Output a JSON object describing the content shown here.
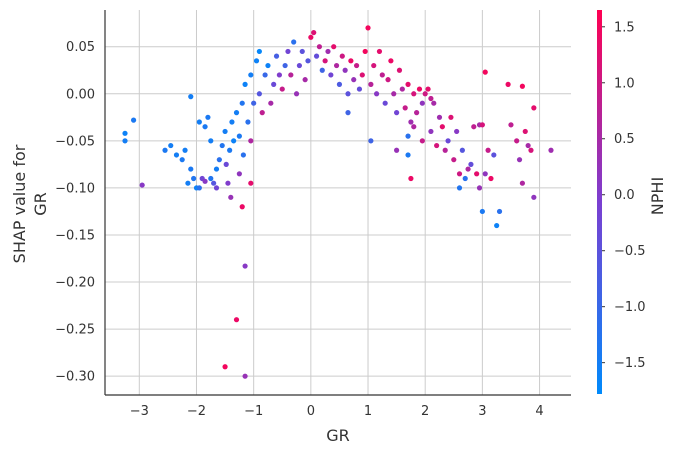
{
  "chart_data": {
    "type": "scatter",
    "title": "",
    "xlabel": "GR",
    "ylabel_lines": [
      "SHAP value for",
      "GR"
    ],
    "xlim": [
      -3.6,
      4.55
    ],
    "ylim": [
      -0.32,
      0.089
    ],
    "x_ticks": [
      -3,
      -2,
      -1,
      0,
      1,
      2,
      3,
      4
    ],
    "x_tick_labels": [
      "−3",
      "−2",
      "−1",
      "0",
      "1",
      "2",
      "3",
      "4"
    ],
    "y_ticks": [
      0.05,
      0.0,
      -0.05,
      -0.1,
      -0.15,
      -0.2,
      -0.25,
      -0.3
    ],
    "y_tick_labels": [
      "0.05",
      "0.00",
      "−0.05",
      "−0.10",
      "−0.15",
      "−0.20",
      "−0.25",
      "−0.30"
    ],
    "grid": true,
    "colorbar": {
      "label": "NPHI",
      "range": [
        -1.78,
        1.65
      ],
      "ticks": [
        1.5,
        1.0,
        0.5,
        0.0,
        -0.5,
        -1.0,
        -1.5
      ],
      "tick_labels": [
        "1.5",
        "1.0",
        "0.5",
        "0.0",
        "−0.5",
        "−1.0",
        "−1.5"
      ],
      "color_low": "#008afb",
      "color_mid": "#7b3fd1",
      "color_high": "#ff0052"
    },
    "points": [
      {
        "x": -3.25,
        "y": -0.042,
        "c": -1.6
      },
      {
        "x": -3.25,
        "y": -0.05,
        "c": -1.5
      },
      {
        "x": -3.1,
        "y": -0.028,
        "c": -1.4
      },
      {
        "x": -2.95,
        "y": -0.097,
        "c": 0.1
      },
      {
        "x": -2.55,
        "y": -0.06,
        "c": -1.4
      },
      {
        "x": -2.45,
        "y": -0.055,
        "c": -1.5
      },
      {
        "x": -2.35,
        "y": -0.065,
        "c": -1.5
      },
      {
        "x": -2.25,
        "y": -0.07,
        "c": -1.4
      },
      {
        "x": -2.2,
        "y": -0.06,
        "c": -1.5
      },
      {
        "x": -2.15,
        "y": -0.095,
        "c": -1.5
      },
      {
        "x": -2.1,
        "y": -0.08,
        "c": -1.4
      },
      {
        "x": -2.05,
        "y": -0.09,
        "c": -1.3
      },
      {
        "x": -2.0,
        "y": -0.1,
        "c": -1.6
      },
      {
        "x": -1.95,
        "y": -0.1,
        "c": -1.2
      },
      {
        "x": -2.1,
        "y": -0.003,
        "c": -1.5
      },
      {
        "x": -1.95,
        "y": -0.03,
        "c": -1.5
      },
      {
        "x": -1.85,
        "y": -0.035,
        "c": -1.4
      },
      {
        "x": -1.8,
        "y": -0.025,
        "c": -1.4
      },
      {
        "x": -1.75,
        "y": -0.05,
        "c": -1.5
      },
      {
        "x": -1.9,
        "y": -0.09,
        "c": -0.2
      },
      {
        "x": -1.85,
        "y": -0.093,
        "c": 0.1
      },
      {
        "x": -1.75,
        "y": -0.09,
        "c": -1.3
      },
      {
        "x": -1.7,
        "y": -0.095,
        "c": -0.6
      },
      {
        "x": -1.65,
        "y": -0.08,
        "c": -1.5
      },
      {
        "x": -1.65,
        "y": -0.1,
        "c": -0.2
      },
      {
        "x": -1.6,
        "y": -0.07,
        "c": -1.2
      },
      {
        "x": -1.55,
        "y": -0.055,
        "c": -1.3
      },
      {
        "x": -1.5,
        "y": -0.04,
        "c": -1.5
      },
      {
        "x": -1.48,
        "y": -0.075,
        "c": -0.3
      },
      {
        "x": -1.45,
        "y": -0.095,
        "c": 0.0
      },
      {
        "x": -1.4,
        "y": -0.11,
        "c": 0.3
      },
      {
        "x": -1.42,
        "y": -0.06,
        "c": -1.4
      },
      {
        "x": -1.38,
        "y": -0.03,
        "c": -1.5
      },
      {
        "x": -1.35,
        "y": -0.05,
        "c": -1.6
      },
      {
        "x": -1.3,
        "y": -0.02,
        "c": -1.5
      },
      {
        "x": -1.25,
        "y": -0.045,
        "c": -1.4
      },
      {
        "x": -1.25,
        "y": -0.085,
        "c": 0.2
      },
      {
        "x": -1.2,
        "y": -0.01,
        "c": -1.3
      },
      {
        "x": -1.18,
        "y": -0.065,
        "c": -1.2
      },
      {
        "x": -1.15,
        "y": 0.01,
        "c": -1.6
      },
      {
        "x": -1.1,
        "y": -0.03,
        "c": -1.2
      },
      {
        "x": -1.05,
        "y": 0.02,
        "c": -1.5
      },
      {
        "x": -1.05,
        "y": -0.05,
        "c": 0.6
      },
      {
        "x": -1.0,
        "y": -0.01,
        "c": -0.9
      },
      {
        "x": -0.95,
        "y": 0.035,
        "c": -1.6
      },
      {
        "x": -0.9,
        "y": 0.045,
        "c": -1.7
      },
      {
        "x": -0.9,
        "y": 0.0,
        "c": -0.6
      },
      {
        "x": -0.85,
        "y": -0.02,
        "c": 0.8
      },
      {
        "x": -0.8,
        "y": 0.02,
        "c": -1.0
      },
      {
        "x": -0.75,
        "y": 0.03,
        "c": -1.6
      },
      {
        "x": -0.7,
        "y": -0.01,
        "c": 0.5
      },
      {
        "x": -0.65,
        "y": 0.01,
        "c": -0.3
      },
      {
        "x": -1.2,
        "y": -0.12,
        "c": 1.4
      },
      {
        "x": -1.05,
        "y": -0.095,
        "c": 1.3
      },
      {
        "x": -1.15,
        "y": -0.3,
        "c": 0.3
      },
      {
        "x": -1.5,
        "y": -0.29,
        "c": 1.5
      },
      {
        "x": -1.3,
        "y": -0.24,
        "c": 1.4
      },
      {
        "x": -1.15,
        "y": -0.183,
        "c": 0.1
      },
      {
        "x": -0.6,
        "y": 0.04,
        "c": -0.8
      },
      {
        "x": -0.55,
        "y": 0.02,
        "c": 0.0
      },
      {
        "x": -0.5,
        "y": 0.005,
        "c": 0.9
      },
      {
        "x": -0.45,
        "y": 0.03,
        "c": -0.9
      },
      {
        "x": -0.4,
        "y": 0.045,
        "c": -0.2
      },
      {
        "x": -0.35,
        "y": 0.02,
        "c": 0.7
      },
      {
        "x": -0.3,
        "y": 0.055,
        "c": -1.2
      },
      {
        "x": -0.25,
        "y": 0.0,
        "c": 0.3
      },
      {
        "x": -0.2,
        "y": 0.03,
        "c": -0.3
      },
      {
        "x": -0.15,
        "y": 0.045,
        "c": -0.5
      },
      {
        "x": -0.1,
        "y": 0.015,
        "c": 0.5
      },
      {
        "x": -0.05,
        "y": 0.035,
        "c": -0.6
      },
      {
        "x": 0.0,
        "y": 0.06,
        "c": 1.4
      },
      {
        "x": 0.05,
        "y": 0.065,
        "c": 1.2
      },
      {
        "x": 0.1,
        "y": 0.04,
        "c": -0.4
      },
      {
        "x": 0.15,
        "y": 0.05,
        "c": 0.8
      },
      {
        "x": 0.2,
        "y": 0.025,
        "c": -0.9
      },
      {
        "x": 0.25,
        "y": 0.035,
        "c": 1.1
      },
      {
        "x": 0.3,
        "y": 0.045,
        "c": 0.4
      },
      {
        "x": 0.35,
        "y": 0.02,
        "c": -0.2
      },
      {
        "x": 0.4,
        "y": 0.05,
        "c": 1.3
      },
      {
        "x": 0.45,
        "y": 0.03,
        "c": 0.6
      },
      {
        "x": 0.5,
        "y": 0.01,
        "c": -0.7
      },
      {
        "x": 0.55,
        "y": 0.04,
        "c": 1.0
      },
      {
        "x": 0.6,
        "y": 0.025,
        "c": 0.2
      },
      {
        "x": 0.65,
        "y": 0.0,
        "c": -0.5
      },
      {
        "x": 0.7,
        "y": 0.035,
        "c": 1.4
      },
      {
        "x": 0.75,
        "y": 0.015,
        "c": 0.3
      },
      {
        "x": 0.8,
        "y": 0.03,
        "c": 0.9
      },
      {
        "x": 0.85,
        "y": 0.005,
        "c": -0.4
      },
      {
        "x": 0.9,
        "y": 0.02,
        "c": 1.2
      },
      {
        "x": 0.95,
        "y": 0.045,
        "c": 1.5
      },
      {
        "x": 1.0,
        "y": 0.07,
        "c": 1.5
      },
      {
        "x": 1.05,
        "y": 0.01,
        "c": 0.7
      },
      {
        "x": 1.1,
        "y": 0.03,
        "c": 1.1
      },
      {
        "x": 1.15,
        "y": 0.0,
        "c": 0.1
      },
      {
        "x": 1.2,
        "y": 0.045,
        "c": 1.3
      },
      {
        "x": 1.25,
        "y": 0.02,
        "c": 0.8
      },
      {
        "x": 1.3,
        "y": -0.01,
        "c": -0.3
      },
      {
        "x": 1.35,
        "y": 0.015,
        "c": 1.0
      },
      {
        "x": 1.4,
        "y": 0.035,
        "c": 1.4
      },
      {
        "x": 1.45,
        "y": 0.0,
        "c": 0.5
      },
      {
        "x": 1.5,
        "y": -0.02,
        "c": -0.2
      },
      {
        "x": 1.55,
        "y": 0.025,
        "c": 1.2
      },
      {
        "x": 1.6,
        "y": 0.005,
        "c": 0.6
      },
      {
        "x": 1.65,
        "y": -0.015,
        "c": 0.9
      },
      {
        "x": 1.7,
        "y": 0.01,
        "c": 1.3
      },
      {
        "x": 1.75,
        "y": -0.03,
        "c": 0.4
      },
      {
        "x": 1.8,
        "y": 0.0,
        "c": 1.1
      },
      {
        "x": 1.85,
        "y": -0.02,
        "c": 0.7
      },
      {
        "x": 1.9,
        "y": 0.005,
        "c": 1.4
      },
      {
        "x": 1.95,
        "y": -0.01,
        "c": 0.2
      },
      {
        "x": 2.0,
        "y": 0.0,
        "c": 1.0
      },
      {
        "x": 2.05,
        "y": 0.005,
        "c": 1.3
      },
      {
        "x": 2.1,
        "y": -0.005,
        "c": 0.8
      },
      {
        "x": 2.15,
        "y": -0.01,
        "c": 0.5
      },
      {
        "x": 1.05,
        "y": -0.05,
        "c": -0.9
      },
      {
        "x": 1.5,
        "y": -0.06,
        "c": 0.3
      },
      {
        "x": 1.7,
        "y": -0.045,
        "c": -1.2
      },
      {
        "x": 1.75,
        "y": -0.09,
        "c": 1.4
      },
      {
        "x": 1.8,
        "y": -0.035,
        "c": 0.6
      },
      {
        "x": 1.7,
        "y": -0.065,
        "c": -1.4
      },
      {
        "x": 1.95,
        "y": -0.05,
        "c": 0.9
      },
      {
        "x": 2.1,
        "y": -0.04,
        "c": 0.2
      },
      {
        "x": 2.2,
        "y": -0.055,
        "c": 1.1
      },
      {
        "x": 2.25,
        "y": -0.025,
        "c": 0.4
      },
      {
        "x": 2.3,
        "y": -0.035,
        "c": 1.3
      },
      {
        "x": 2.35,
        "y": -0.06,
        "c": 0.7
      },
      {
        "x": 2.4,
        "y": -0.05,
        "c": -0.3
      },
      {
        "x": 2.45,
        "y": -0.025,
        "c": 1.2
      },
      {
        "x": 2.5,
        "y": -0.07,
        "c": 0.9
      },
      {
        "x": 2.55,
        "y": -0.04,
        "c": 0.1
      },
      {
        "x": 2.6,
        "y": -0.085,
        "c": 1.0
      },
      {
        "x": 2.65,
        "y": -0.06,
        "c": -0.6
      },
      {
        "x": 2.7,
        "y": -0.09,
        "c": -1.2
      },
      {
        "x": 2.75,
        "y": -0.08,
        "c": 0.6
      },
      {
        "x": 2.8,
        "y": -0.075,
        "c": -0.4
      },
      {
        "x": 2.85,
        "y": -0.035,
        "c": 0.8
      },
      {
        "x": 2.9,
        "y": -0.085,
        "c": 1.3
      },
      {
        "x": 2.95,
        "y": -0.033,
        "c": 0.5
      },
      {
        "x": 3.0,
        "y": -0.033,
        "c": 1.1
      },
      {
        "x": 3.05,
        "y": -0.085,
        "c": 0.2
      },
      {
        "x": 3.1,
        "y": -0.06,
        "c": 0.9
      },
      {
        "x": 3.15,
        "y": -0.09,
        "c": 1.4
      },
      {
        "x": 3.2,
        "y": -0.065,
        "c": -0.5
      },
      {
        "x": 3.05,
        "y": 0.023,
        "c": 1.5
      },
      {
        "x": 3.45,
        "y": 0.01,
        "c": 1.4
      },
      {
        "x": 3.7,
        "y": 0.008,
        "c": 1.5
      },
      {
        "x": 3.9,
        "y": -0.015,
        "c": 1.3
      },
      {
        "x": 3.5,
        "y": -0.033,
        "c": 0.8
      },
      {
        "x": 3.3,
        "y": -0.125,
        "c": -1.2
      },
      {
        "x": 3.0,
        "y": -0.125,
        "c": -1.4
      },
      {
        "x": 3.25,
        "y": -0.14,
        "c": -1.6
      },
      {
        "x": 3.6,
        "y": -0.05,
        "c": 0.9
      },
      {
        "x": 3.65,
        "y": -0.07,
        "c": 0.3
      },
      {
        "x": 3.7,
        "y": -0.095,
        "c": 0.6
      },
      {
        "x": 3.75,
        "y": -0.04,
        "c": 1.2
      },
      {
        "x": 3.8,
        "y": -0.055,
        "c": 0.5
      },
      {
        "x": 3.85,
        "y": -0.06,
        "c": 1.1
      },
      {
        "x": 3.9,
        "y": -0.11,
        "c": 0.2
      },
      {
        "x": 4.2,
        "y": -0.06,
        "c": 0.4
      },
      {
        "x": 2.95,
        "y": -0.1,
        "c": 0.3
      },
      {
        "x": 2.6,
        "y": -0.1,
        "c": -1.3
      },
      {
        "x": 0.65,
        "y": -0.02,
        "c": -0.9
      }
    ]
  }
}
